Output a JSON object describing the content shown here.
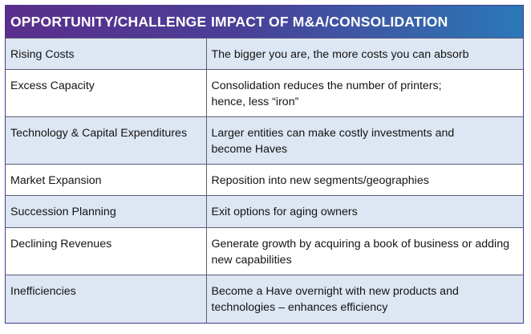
{
  "header": {
    "col1": "OPPORTUNITY/CHALLENGE",
    "col2": "IMPACT OF M&A/CONSOLIDATION"
  },
  "rows": [
    {
      "challenge": "Rising Costs",
      "impact": [
        "The bigger you are, the more costs you can absorb"
      ]
    },
    {
      "challenge": "Excess Capacity",
      "impact": [
        "Consolidation reduces the number of printers;",
        "hence, less “iron”"
      ]
    },
    {
      "challenge": "Technology & Capital Expenditures",
      "impact": [
        "Larger entities can make costly investments and",
        "become Haves"
      ]
    },
    {
      "challenge": "Market Expansion",
      "impact": [
        "Reposition into new segments/geographies"
      ]
    },
    {
      "challenge": "Succession Planning",
      "impact": [
        "Exit options for aging owners"
      ]
    },
    {
      "challenge": "Declining Revenues",
      "impact": [
        "Generate growth by acquiring a book of business or adding",
        "new capabilities"
      ]
    },
    {
      "challenge": "Inefficiencies",
      "impact": [
        "Become a Have overnight with new products and",
        "technologies – enhances efficiency"
      ]
    }
  ],
  "colors": {
    "header_gradient_start": "#5a2e8c",
    "header_gradient_end": "#2a78b8",
    "row_shade": "#dde6f3",
    "row_plain": "#ffffff",
    "grid": "#5d5d77"
  }
}
